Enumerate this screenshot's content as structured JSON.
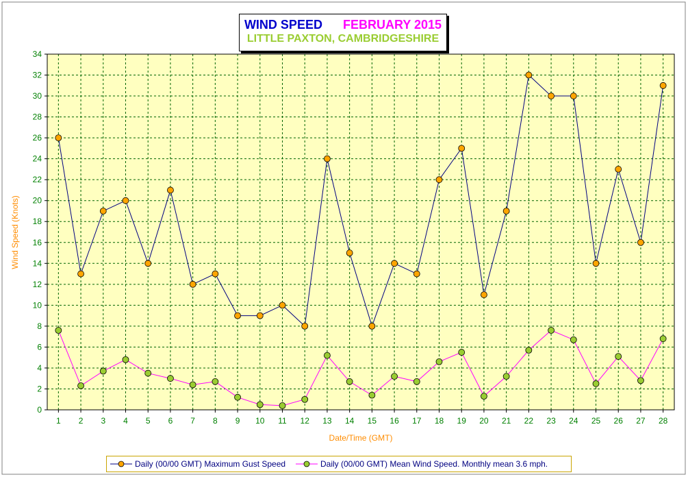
{
  "colors": {
    "background": "#ffffff",
    "plot_background": "#ffffc0",
    "grid": "#006400",
    "gust_line": "#000080",
    "mean_line": "#ff00ff",
    "gust_marker": "#ffa500",
    "mean_marker": "#9acd32",
    "title_main": "#0000cc",
    "title_month": "#ff00ff",
    "title_location": "#9acd32",
    "axis_label": "#ff8c00",
    "tick_label": "#008000"
  },
  "title": {
    "main": "WIND SPEED",
    "month": "FEBRUARY 2015",
    "location": "LITTLE PAXTON, CAMBRIDGESHIRE"
  },
  "chart_data": {
    "type": "line",
    "xlabel": "Date/Time (GMT)",
    "ylabel": "Wind Speed (Knots)",
    "ylim": [
      0,
      34
    ],
    "yticks": [
      "0",
      "2",
      "4",
      "6",
      "8",
      "10",
      "12",
      "14",
      "16",
      "18",
      "20",
      "22",
      "24",
      "26",
      "28",
      "30",
      "32",
      "34"
    ],
    "categories": [
      "1",
      "2",
      "3",
      "4",
      "5",
      "6",
      "7",
      "8",
      "9",
      "10",
      "11",
      "12",
      "13",
      "14",
      "15",
      "16",
      "17",
      "18",
      "19",
      "20",
      "21",
      "22",
      "23",
      "24",
      "25",
      "26",
      "27",
      "28"
    ],
    "grid": true,
    "legend_position": "bottom",
    "series": [
      {
        "name": "Daily (00/00 GMT) Maximum Gust Speed",
        "color": "#000080",
        "marker_color": "#ffa500",
        "values": [
          26,
          13,
          19,
          20,
          14,
          21,
          12,
          13,
          9,
          9,
          10,
          8,
          24,
          15,
          8,
          14,
          13,
          22,
          25,
          11,
          19,
          32,
          30,
          30,
          14,
          23,
          16,
          31
        ]
      },
      {
        "name": "Daily (00/00 GMT) Mean Wind Speed. Monthly mean 3.6 mph.",
        "color": "#ff00ff",
        "marker_color": "#9acd32",
        "values": [
          7.6,
          2.3,
          3.7,
          4.8,
          3.5,
          3.0,
          2.4,
          2.7,
          1.2,
          0.5,
          0.4,
          1.0,
          5.2,
          2.7,
          1.4,
          3.2,
          2.7,
          4.6,
          5.5,
          1.3,
          3.2,
          5.7,
          7.6,
          6.7,
          2.5,
          5.1,
          2.8,
          6.8
        ]
      }
    ]
  }
}
